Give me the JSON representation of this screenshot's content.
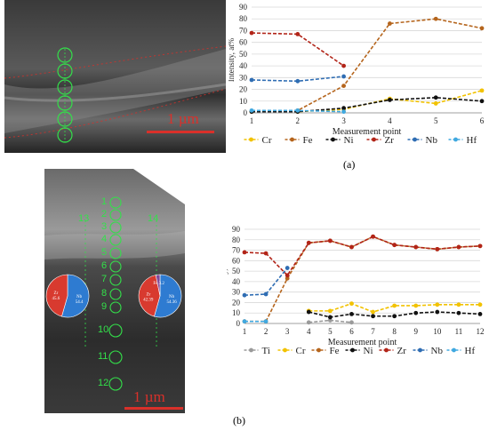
{
  "panel_a": {
    "label": "(a)",
    "scale_label": "1 µm"
  },
  "panel_b": {
    "label": "(b)",
    "scale_label": "1 µm",
    "point_labels": [
      "1",
      "2",
      "3",
      "4",
      "5",
      "6",
      "7",
      "8",
      "9",
      "10",
      "11",
      "12",
      "13",
      "14"
    ],
    "pie_left": {
      "labels": [
        "Nb",
        "Zr"
      ],
      "values": [
        54.4,
        45.6
      ],
      "colors": [
        "#2e7bd1",
        "#d83a2f"
      ],
      "text": [
        "Nb\n54.4",
        "Zr\n45.6"
      ]
    },
    "pie_right": {
      "labels": [
        "Nb",
        "Zr",
        "Fe"
      ],
      "values": [
        54.4,
        42.4,
        3.2
      ],
      "colors": [
        "#2e7bd1",
        "#d83a2f",
        "#7f4a9a"
      ],
      "text": [
        "Nb\n54.36",
        "Zr\n42.39",
        "Fe 3.2"
      ]
    }
  },
  "chart_data": [
    {
      "type": "line",
      "title": "",
      "xlabel": "Measurement point",
      "ylabel": "Intensity, at%",
      "x": [
        1,
        2,
        3,
        4,
        5,
        6
      ],
      "ylim": [
        0,
        90
      ],
      "yticks": [
        0,
        10,
        20,
        30,
        40,
        50,
        60,
        70,
        80,
        90
      ],
      "grid": true,
      "legend": "bottom",
      "series": [
        {
          "name": "Cr",
          "color": "#f2c200",
          "x": [
            1,
            2,
            3,
            4,
            5,
            6
          ],
          "values": [
            1,
            1,
            3,
            12,
            8,
            19
          ]
        },
        {
          "name": "Fe",
          "color": "#b5651d",
          "x": [
            1,
            2,
            3,
            4,
            5,
            6
          ],
          "values": [
            1,
            2,
            23,
            76,
            80,
            72
          ]
        },
        {
          "name": "Ni",
          "color": "#111111",
          "x": [
            1,
            2,
            3,
            4,
            5,
            6
          ],
          "values": [
            1,
            1,
            4,
            11,
            13,
            10
          ]
        },
        {
          "name": "Zr",
          "color": "#b22418",
          "x": [
            1,
            2,
            3
          ],
          "values": [
            68,
            67,
            40
          ]
        },
        {
          "name": "Nb",
          "color": "#2f6db3",
          "x": [
            1,
            2,
            3
          ],
          "values": [
            28,
            27,
            31
          ]
        },
        {
          "name": "Hf",
          "color": "#41a9e0",
          "x": [
            1,
            2,
            3
          ],
          "values": [
            2,
            2,
            1
          ]
        }
      ]
    },
    {
      "type": "line",
      "title": "",
      "xlabel": "Measurement point",
      "ylabel": "Intensity, at%",
      "x": [
        1,
        2,
        3,
        4,
        5,
        6,
        7,
        8,
        9,
        10,
        11,
        12
      ],
      "ylim": [
        0,
        90
      ],
      "yticks": [
        0,
        10,
        20,
        30,
        40,
        50,
        60,
        70,
        80,
        90
      ],
      "grid": true,
      "legend": "bottom",
      "series": [
        {
          "name": "Ti",
          "color": "#9a9a9a",
          "x": [
            4,
            5,
            6
          ],
          "values": [
            1,
            3,
            1
          ]
        },
        {
          "name": "Cr",
          "color": "#f2c200",
          "x": [
            4,
            5,
            6,
            7,
            8,
            9,
            10,
            11,
            12
          ],
          "values": [
            12,
            12,
            19,
            11,
            17,
            17,
            18,
            18,
            18
          ]
        },
        {
          "name": "Fe",
          "color": "#b5651d",
          "x": [
            1,
            2,
            3,
            4,
            5,
            6,
            7,
            8,
            9,
            10,
            11,
            12
          ],
          "values": [
            2,
            2,
            43,
            77,
            79,
            73,
            83,
            75,
            73,
            71,
            73,
            74
          ]
        },
        {
          "name": "Ni",
          "color": "#111111",
          "x": [
            4,
            5,
            6,
            7,
            8,
            9,
            10,
            11,
            12
          ],
          "values": [
            11,
            6,
            9,
            7,
            7,
            10,
            11,
            10,
            9
          ]
        },
        {
          "name": "Zr",
          "color": "#b22418",
          "x": [
            1,
            2,
            3,
            4,
            5,
            6,
            7,
            8,
            9,
            10,
            11,
            12
          ],
          "values": [
            68,
            67,
            46,
            77,
            79,
            73,
            83,
            75,
            73,
            71,
            73,
            74
          ]
        },
        {
          "name": "Nb",
          "color": "#2f6db3",
          "x": [
            1,
            2,
            3
          ],
          "values": [
            27,
            28,
            53
          ]
        },
        {
          "name": "Hf",
          "color": "#41a9e0",
          "x": [
            1,
            2
          ],
          "values": [
            2,
            2
          ]
        }
      ]
    }
  ]
}
